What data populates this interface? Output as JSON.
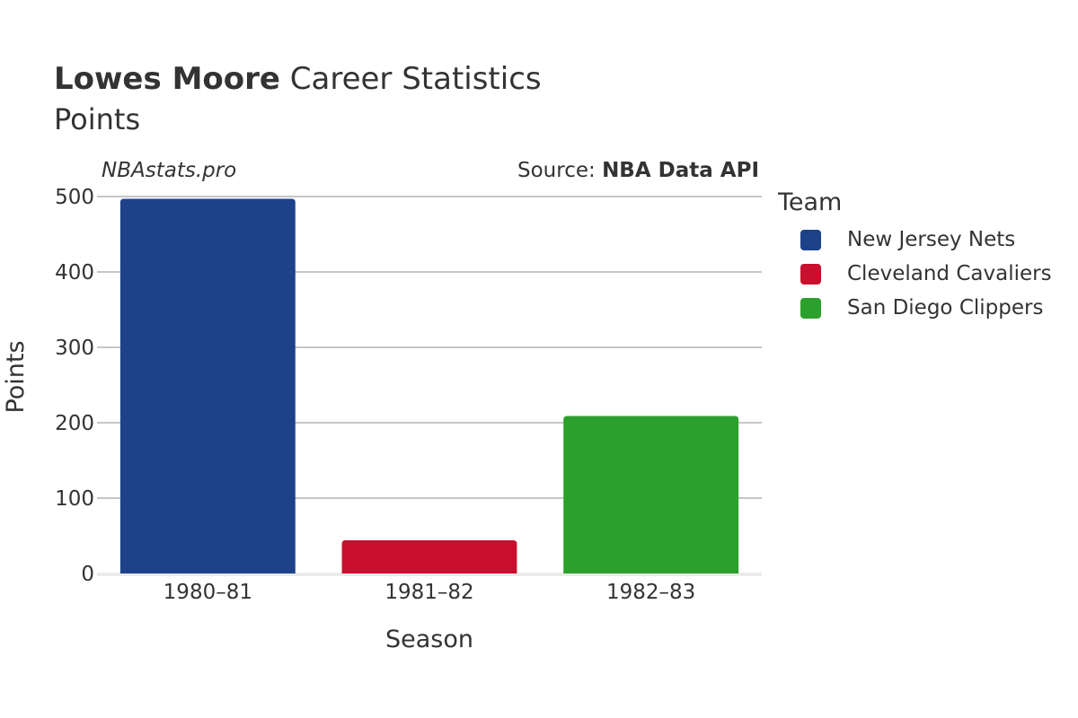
{
  "header": {
    "player_name": "Lowes Moore",
    "title_rest": " Career Statistics",
    "subtitle": "Points"
  },
  "watermark": "NBAstats.pro",
  "source": {
    "prefix": "Source: ",
    "name": "NBA Data API"
  },
  "legend": {
    "title": "Team",
    "items": [
      {
        "label": "New Jersey Nets",
        "color": "#1d428a"
      },
      {
        "label": "Cleveland Cavaliers",
        "color": "#c8102e"
      },
      {
        "label": "San Diego Clippers",
        "color": "#2ca02c"
      }
    ]
  },
  "chart_data": {
    "type": "bar",
    "title": "Lowes Moore Career Statistics",
    "subtitle": "Points",
    "xlabel": "Season",
    "ylabel": "Points",
    "categories": [
      "1980–81",
      "1981–82",
      "1982–83"
    ],
    "series": [
      {
        "name": "New Jersey Nets",
        "values": [
          497,
          null,
          null
        ],
        "color": "#1d428a"
      },
      {
        "name": "Cleveland Cavaliers",
        "values": [
          null,
          44,
          null
        ],
        "color": "#c8102e"
      },
      {
        "name": "San Diego Clippers",
        "values": [
          null,
          null,
          209
        ],
        "color": "#2ca02c"
      }
    ],
    "ylim": [
      0,
      500
    ],
    "yticks": [
      0,
      100,
      200,
      300,
      400,
      500
    ],
    "grid": true,
    "legend_position": "right"
  }
}
